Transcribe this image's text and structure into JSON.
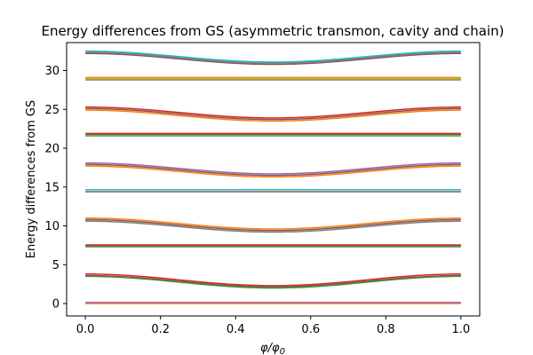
{
  "chart_data": {
    "type": "line",
    "title": "Energy differences from GS (asymmetric transmon, cavity and chain)",
    "xlabel_main": "φ/φ",
    "xlabel_sub": "0",
    "ylabel": "Energy differences from GS",
    "xlim": [
      -0.05,
      1.05
    ],
    "ylim": [
      -1.6,
      33.6
    ],
    "xticks": [
      0.0,
      0.2,
      0.4,
      0.6,
      0.8,
      1.0
    ],
    "xtick_labels": [
      "0.0",
      "0.2",
      "0.4",
      "0.6",
      "0.8",
      "1.0"
    ],
    "yticks": [
      0,
      5,
      10,
      15,
      20,
      25,
      30
    ],
    "ytick_labels": [
      "0",
      "5",
      "10",
      "15",
      "20",
      "25",
      "30"
    ],
    "grid": false,
    "legend": "none",
    "series": [
      {
        "color": "#1f77b4",
        "y_end": 0.1,
        "y_mid": 0.1
      },
      {
        "color": "#ff7f0e",
        "y_end": 0.0,
        "y_mid": 0.0
      },
      {
        "color": "#9467bd",
        "y_end": 0.15,
        "y_mid": 0.15
      },
      {
        "color": "#2ca02c",
        "y_end": 3.5,
        "y_mid": 2.0
      },
      {
        "color": "#d62728",
        "y_end": 3.8,
        "y_mid": 2.3
      },
      {
        "color": "#8c564b",
        "y_end": 3.6,
        "y_mid": 2.15
      },
      {
        "color": "#7f7f7f",
        "y_end": 7.3,
        "y_mid": 7.3
      },
      {
        "color": "#2ca02c",
        "y_end": 7.45,
        "y_mid": 7.45
      },
      {
        "color": "#d62728",
        "y_end": 7.55,
        "y_mid": 7.55
      },
      {
        "color": "#7f7f7f",
        "y_end": 10.6,
        "y_mid": 9.2
      },
      {
        "color": "#ff7f0e",
        "y_end": 11.0,
        "y_mid": 9.6
      },
      {
        "color": "#8c564b",
        "y_end": 10.8,
        "y_mid": 9.4
      },
      {
        "color": "#8c564b",
        "y_end": 14.4,
        "y_mid": 14.4
      },
      {
        "color": "#17becf",
        "y_end": 14.65,
        "y_mid": 14.65
      },
      {
        "color": "#ff7f0e",
        "y_end": 17.7,
        "y_mid": 16.3
      },
      {
        "color": "#9467bd",
        "y_end": 18.1,
        "y_mid": 16.7
      },
      {
        "color": "#8c564b",
        "y_end": 17.9,
        "y_mid": 16.5
      },
      {
        "color": "#2ca02c",
        "y_end": 21.6,
        "y_mid": 21.6
      },
      {
        "color": "#8c564b",
        "y_end": 21.8,
        "y_mid": 21.8
      },
      {
        "color": "#d62728",
        "y_end": 21.9,
        "y_mid": 21.9
      },
      {
        "color": "#ff7f0e",
        "y_end": 24.9,
        "y_mid": 23.5
      },
      {
        "color": "#8c564b",
        "y_end": 25.1,
        "y_mid": 23.7
      },
      {
        "color": "#d62728",
        "y_end": 25.3,
        "y_mid": 23.9
      },
      {
        "color": "#7f7f7f",
        "y_end": 28.8,
        "y_mid": 28.8
      },
      {
        "color": "#ff7f0e",
        "y_end": 29.1,
        "y_mid": 29.1
      },
      {
        "color": "#bcbd22",
        "y_end": 28.95,
        "y_mid": 28.95
      },
      {
        "color": "#8c564b",
        "y_end": 32.2,
        "y_mid": 30.8
      },
      {
        "color": "#17becf",
        "y_end": 32.5,
        "y_mid": 31.1
      },
      {
        "color": "#7f7f7f",
        "y_end": 32.35,
        "y_mid": 30.95
      }
    ]
  }
}
